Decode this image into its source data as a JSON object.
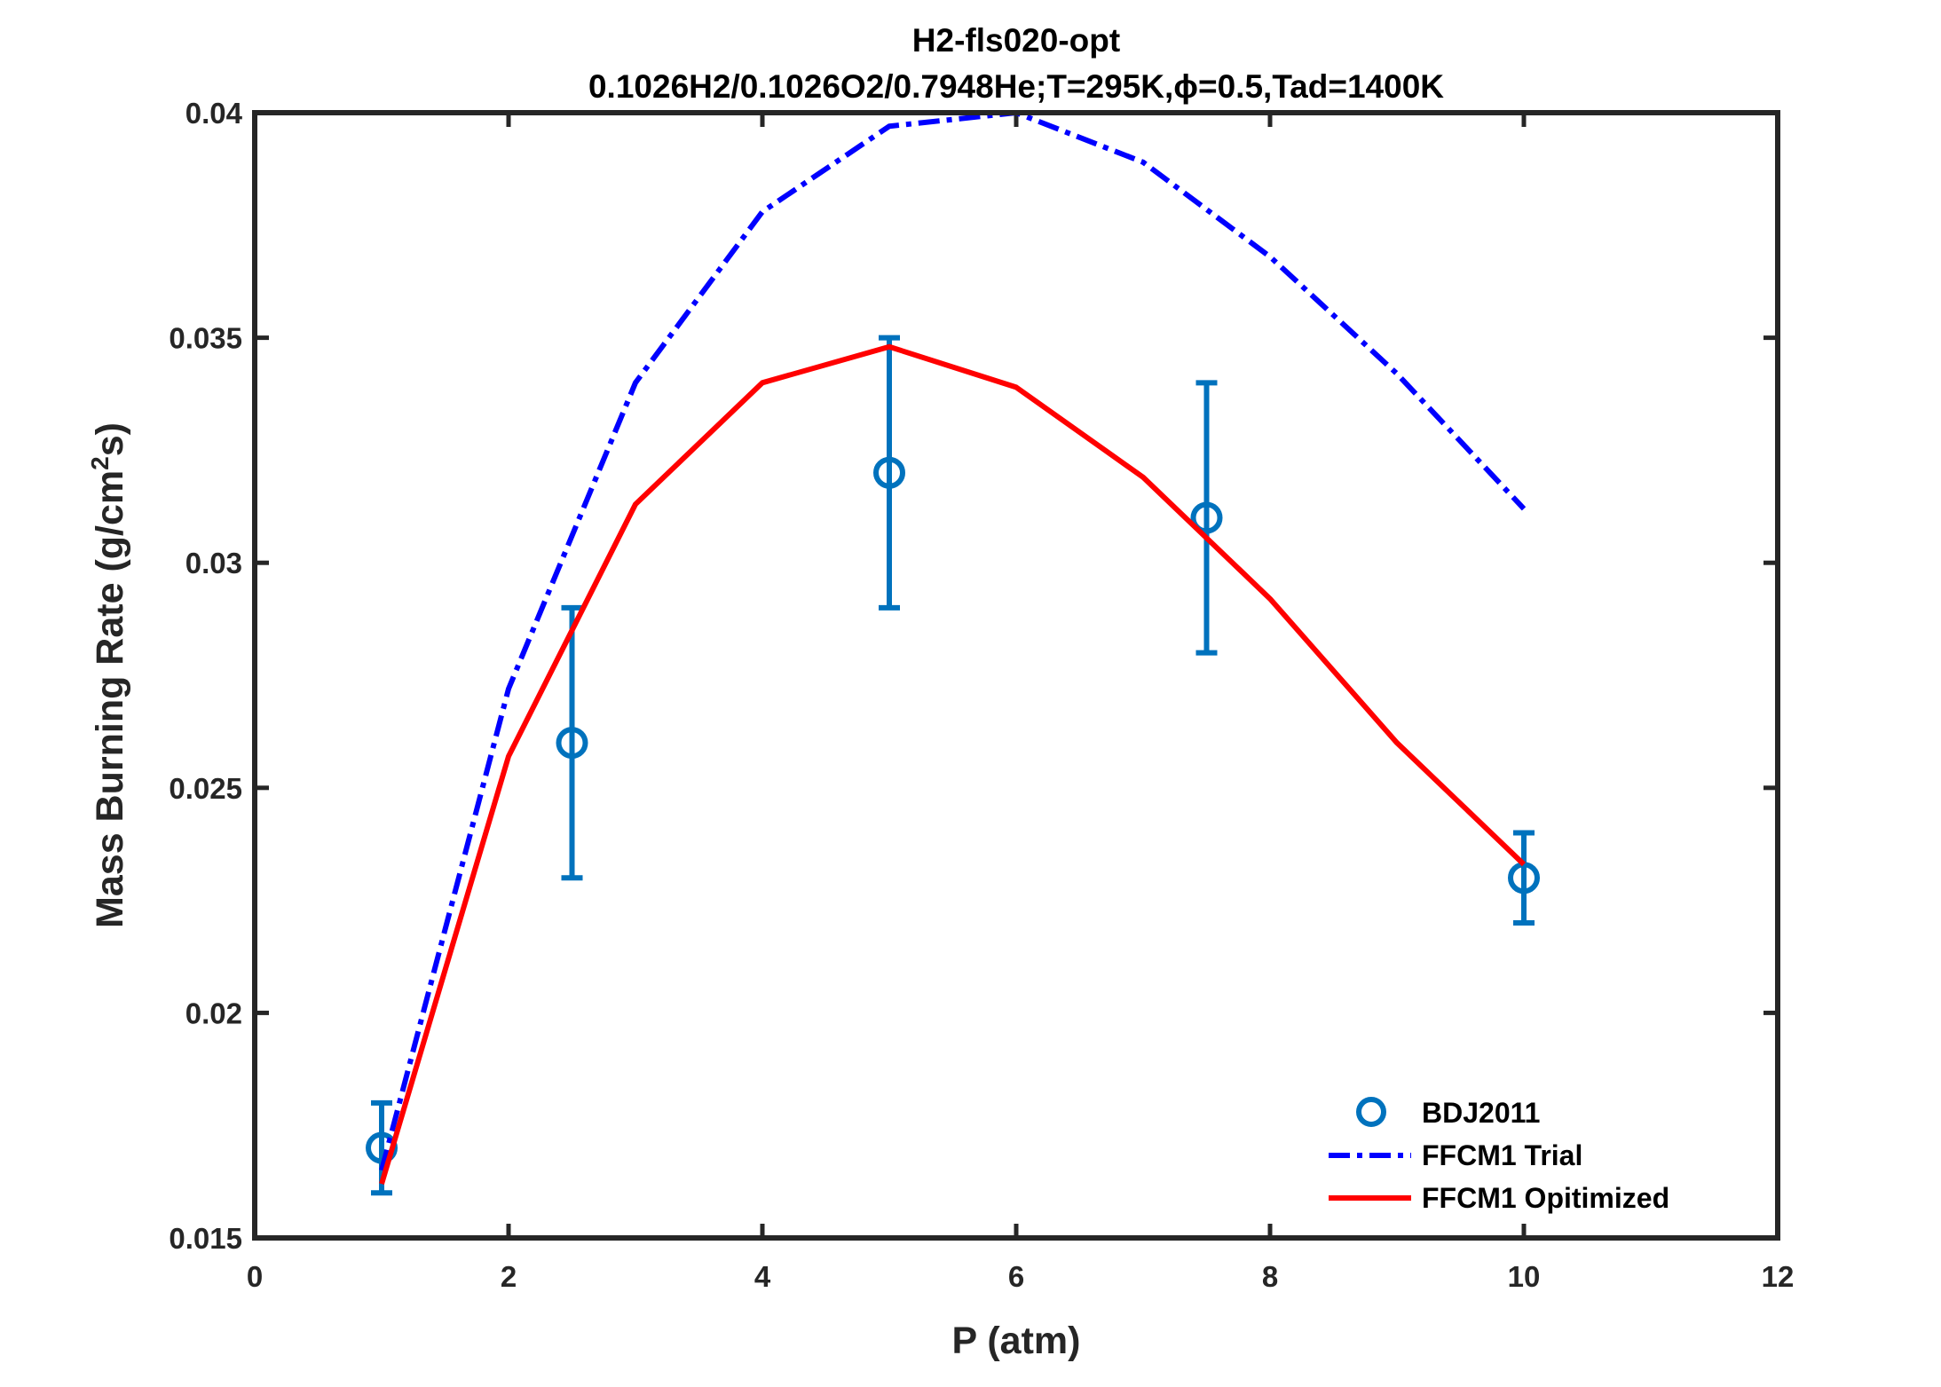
{
  "chart_data": {
    "type": "line",
    "title": "H2-fls020-opt",
    "subtitle": "0.1026H2/0.1026O2/0.7948He;T=295K,ϕ=0.5,Tad=1400K",
    "xlabel": "P (atm)",
    "ylabel_main": "Mass Burning Rate (g/cm",
    "ylabel_sup": "2",
    "ylabel_end": "s)",
    "xlim": [
      0,
      12
    ],
    "ylim": [
      0.015,
      0.04
    ],
    "xticks": [
      0,
      2,
      4,
      6,
      8,
      10,
      12
    ],
    "xtick_labels": [
      "0",
      "2",
      "4",
      "6",
      "8",
      "10",
      "12"
    ],
    "yticks": [
      0.015,
      0.02,
      0.025,
      0.03,
      0.035,
      0.04
    ],
    "ytick_labels": [
      "0.015",
      "0.02",
      "0.025",
      "0.03",
      "0.035",
      "0.04"
    ],
    "grid": false,
    "legend_position": "bottom-right",
    "series": [
      {
        "name": "BDJ2011",
        "kind": "errorbar",
        "color": "#0072BD",
        "x": [
          1,
          2.5,
          5,
          7.5,
          10
        ],
        "y": [
          0.017,
          0.026,
          0.032,
          0.031,
          0.023
        ],
        "err": [
          0.001,
          0.003,
          0.003,
          0.003,
          0.001
        ]
      },
      {
        "name": "FFCM1 Trial",
        "kind": "dashdot",
        "color": "#0000FF",
        "x": [
          1,
          2,
          3,
          4,
          5,
          6,
          7,
          8,
          9,
          10
        ],
        "y": [
          0.0165,
          0.0272,
          0.034,
          0.0378,
          0.0397,
          0.04,
          0.0389,
          0.0368,
          0.0342,
          0.0312
        ]
      },
      {
        "name": "FFCM1 Opitimized",
        "kind": "solid",
        "color": "#FF0000",
        "x": [
          1,
          2,
          3,
          4,
          5,
          6,
          7,
          8,
          9,
          10
        ],
        "y": [
          0.0162,
          0.0257,
          0.0313,
          0.034,
          0.0348,
          0.0339,
          0.0319,
          0.0292,
          0.026,
          0.0233
        ]
      }
    ]
  }
}
